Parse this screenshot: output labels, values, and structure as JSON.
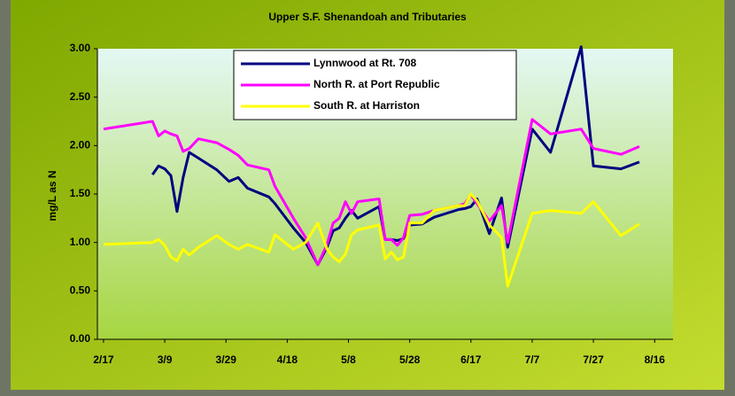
{
  "chart_data": {
    "type": "line",
    "title": "Upper S.F. Shenandoah and Tributaries",
    "y_label": "mg/L as N",
    "x": [
      "2/17",
      "3/5",
      "3/7",
      "3/9",
      "3/11",
      "3/13",
      "3/15",
      "3/17",
      "3/20",
      "3/26",
      "3/30",
      "4/2",
      "4/5",
      "4/12",
      "4/14",
      "4/20",
      "4/24",
      "4/28",
      "5/1",
      "5/3",
      "5/5",
      "5/7",
      "5/9",
      "5/11",
      "5/18",
      "5/20",
      "5/22",
      "5/24",
      "5/26",
      "5/28",
      "6/1",
      "6/5",
      "6/13",
      "6/15",
      "6/17",
      "6/19",
      "6/23",
      "6/27",
      "6/29",
      "7/7",
      "7/13",
      "7/23",
      "7/27",
      "8/5",
      "8/11"
    ],
    "series": [
      {
        "name": "Lynnwood at Rt. 708",
        "color": "#000080",
        "values": [
          null,
          1.7,
          1.79,
          1.76,
          1.69,
          1.32,
          1.67,
          1.93,
          1.87,
          1.75,
          1.63,
          1.67,
          1.56,
          1.47,
          1.4,
          1.15,
          1.0,
          0.77,
          0.95,
          1.12,
          1.15,
          1.25,
          1.33,
          1.25,
          1.37,
          1.03,
          1.03,
          1.02,
          1.04,
          1.18,
          1.19,
          1.26,
          1.34,
          1.35,
          1.37,
          1.45,
          1.09,
          1.46,
          0.95,
          2.17,
          1.93,
          3.02,
          1.79,
          1.76,
          1.83
        ]
      },
      {
        "name": "North R. at Port Republic",
        "color": "#ff00ff",
        "values": [
          2.17,
          2.25,
          2.1,
          2.15,
          2.12,
          2.1,
          1.94,
          1.97,
          2.07,
          2.03,
          1.96,
          1.9,
          1.8,
          1.75,
          1.58,
          1.25,
          1.05,
          0.77,
          0.98,
          1.2,
          1.25,
          1.42,
          1.3,
          1.42,
          1.45,
          1.03,
          1.03,
          0.97,
          1.05,
          1.28,
          1.29,
          1.33,
          1.38,
          1.4,
          1.49,
          1.4,
          1.22,
          1.38,
          1.0,
          2.27,
          2.12,
          2.17,
          1.97,
          1.91,
          1.99
        ]
      },
      {
        "name": "South R. at Harriston",
        "color": "#ffff00",
        "values": [
          0.98,
          1.0,
          1.03,
          0.97,
          0.85,
          0.81,
          0.93,
          0.87,
          0.95,
          1.07,
          0.98,
          0.93,
          0.98,
          0.9,
          1.08,
          0.93,
          1.0,
          1.2,
          0.93,
          0.85,
          0.8,
          0.88,
          1.08,
          1.13,
          1.18,
          0.83,
          0.9,
          0.82,
          0.85,
          1.2,
          1.2,
          1.33,
          1.38,
          1.38,
          1.5,
          1.43,
          1.18,
          1.05,
          0.55,
          1.3,
          1.33,
          1.3,
          1.42,
          1.07,
          1.19
        ]
      }
    ],
    "xlim": [
      "2/15",
      "8/22"
    ],
    "xticks": [
      "2/17",
      "3/9",
      "3/29",
      "4/18",
      "5/8",
      "5/28",
      "6/17",
      "7/7",
      "7/27",
      "8/16"
    ],
    "ylim": [
      0,
      3
    ],
    "yticks": [
      {
        "value": 0,
        "label": "0.00"
      },
      {
        "value": 0.5,
        "label": "0.50"
      },
      {
        "value": 1,
        "label": "1.00"
      },
      {
        "value": 1.5,
        "label": "1.50"
      },
      {
        "value": 2,
        "label": "2.00"
      },
      {
        "value": 2.5,
        "label": "2.50"
      },
      {
        "value": 3,
        "label": "3.00"
      }
    ],
    "legend": "top"
  }
}
